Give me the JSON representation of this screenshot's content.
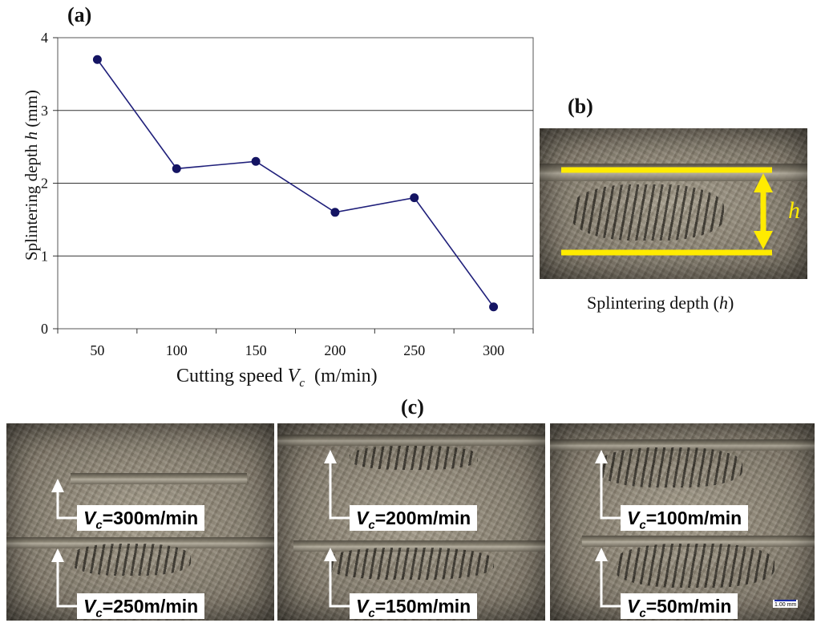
{
  "panel_labels": {
    "a": "(a)",
    "b": "(b)",
    "c": "(c)"
  },
  "chart_data": {
    "type": "line",
    "title": "",
    "xlabel_main": "Cutting speed",
    "xlabel_var": "V",
    "xlabel_sub": "c",
    "xlabel_unit": "(m/min)",
    "ylabel_pre": "Splintering depth ",
    "ylabel_var": "h",
    "ylabel_unit": " (mm)",
    "x": [
      50,
      100,
      150,
      200,
      250,
      300
    ],
    "categories": [
      "50",
      "100",
      "150",
      "200",
      "250",
      "300"
    ],
    "series": [
      {
        "name": "Splintering depth h",
        "values": [
          3.7,
          2.2,
          2.3,
          1.6,
          1.8,
          0.3
        ]
      }
    ],
    "yticks": [
      0,
      1,
      2,
      3,
      4
    ],
    "ylim": [
      0,
      4
    ],
    "grid": true,
    "color": "#1f1f7a",
    "marker_color": "#141463"
  },
  "panel_b": {
    "h_label": "h",
    "caption_pre": "Splintering depth (",
    "caption_var": "h",
    "caption_post": ")",
    "highlight_color": "#ffeb00"
  },
  "panel_c": {
    "images": [
      {
        "upper_speed": "=300m/min",
        "lower_speed": "=250m/min"
      },
      {
        "upper_speed": "=200m/min",
        "lower_speed": "=150m/min"
      },
      {
        "upper_speed": "=100m/min",
        "lower_speed": "=50m/min"
      }
    ],
    "vc_symbol": "V",
    "vc_sub": "c",
    "scale_text": "1.00 mm"
  }
}
